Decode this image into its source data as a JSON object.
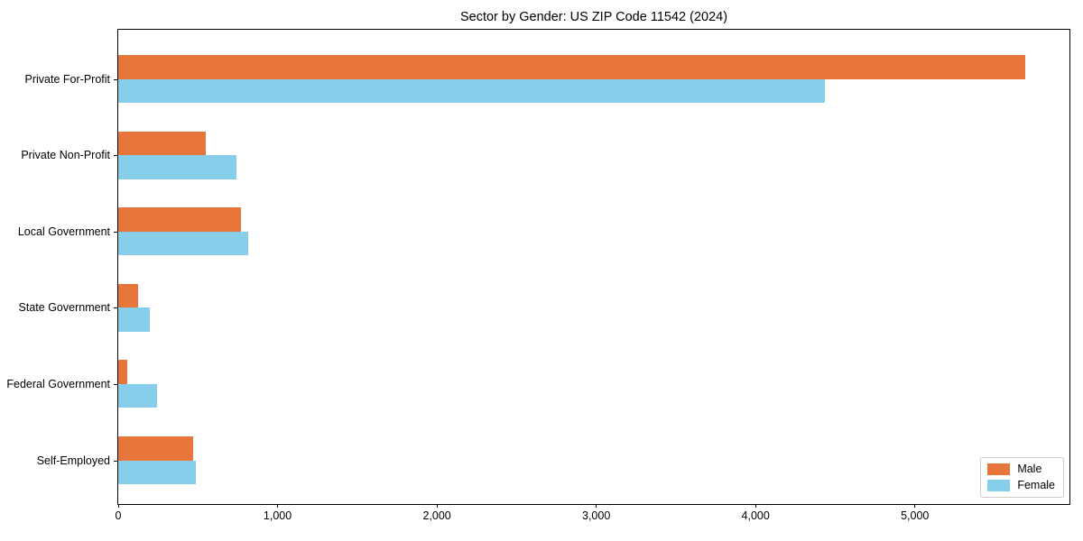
{
  "chart_data": {
    "type": "bar",
    "orientation": "horizontal",
    "title": "Sector by Gender: US ZIP Code 11542 (2024)",
    "categories": [
      "Private For-Profit",
      "Private Non-Profit",
      "Local Government",
      "State Government",
      "Federal Government",
      "Self-Employed"
    ],
    "series": [
      {
        "name": "Male",
        "color": "#E8763B",
        "values": [
          5690,
          550,
          770,
          125,
          55,
          470
        ]
      },
      {
        "name": "Female",
        "color": "#87CEEB",
        "values": [
          4435,
          740,
          815,
          200,
          245,
          485
        ]
      }
    ],
    "xlabel": "",
    "ylabel": "",
    "xlim": [
      0,
      5970
    ],
    "xticks": [
      0,
      1000,
      2000,
      3000,
      4000,
      5000
    ],
    "xtick_labels": [
      "0",
      "1,000",
      "2,000",
      "3,000",
      "4,000",
      "5,000"
    ],
    "grid": false,
    "legend": {
      "position": "lower right"
    },
    "colors": {
      "male": "#E8763B",
      "female": "#87CEEB",
      "spine": "#000000",
      "legend_border": "#cccccc"
    }
  }
}
